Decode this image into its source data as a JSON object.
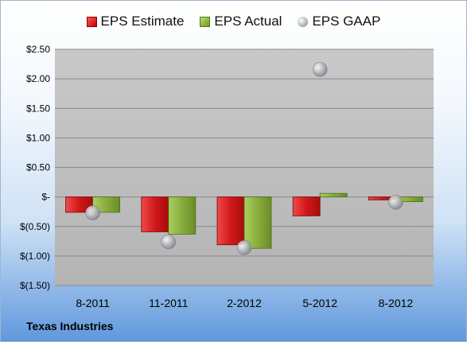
{
  "chart_data": {
    "type": "bar",
    "categories": [
      "8-2011",
      "11-2011",
      "2-2012",
      "5-2012",
      "8-2012"
    ],
    "series": [
      {
        "name": "EPS Estimate",
        "values": [
          -0.26,
          -0.59,
          -0.81,
          -0.32,
          -0.05
        ]
      },
      {
        "name": "EPS Actual",
        "values": [
          -0.26,
          -0.63,
          -0.87,
          0.06,
          -0.08
        ]
      },
      {
        "name": "EPS GAAP",
        "values": [
          -0.27,
          -0.76,
          -0.86,
          2.16,
          -0.09
        ]
      }
    ],
    "ylim": [
      -1.5,
      2.5
    ],
    "yticks": [
      2.5,
      2.0,
      1.5,
      1.0,
      0.5,
      0,
      -0.5,
      -1.0,
      -1.5
    ],
    "ytick_labels": [
      "$2.50",
      "$2.00",
      "$1.50",
      "$1.00",
      "$0.50",
      "$-",
      "$(0.50)",
      "$(1.00)",
      "$(1.50)"
    ],
    "grid": true,
    "legend_position": "top",
    "colors": {
      "estimate": "#d42020",
      "actual": "#8db33e",
      "gaap": "#b0b4ba"
    }
  },
  "footer": {
    "company": "Texas Industries"
  }
}
